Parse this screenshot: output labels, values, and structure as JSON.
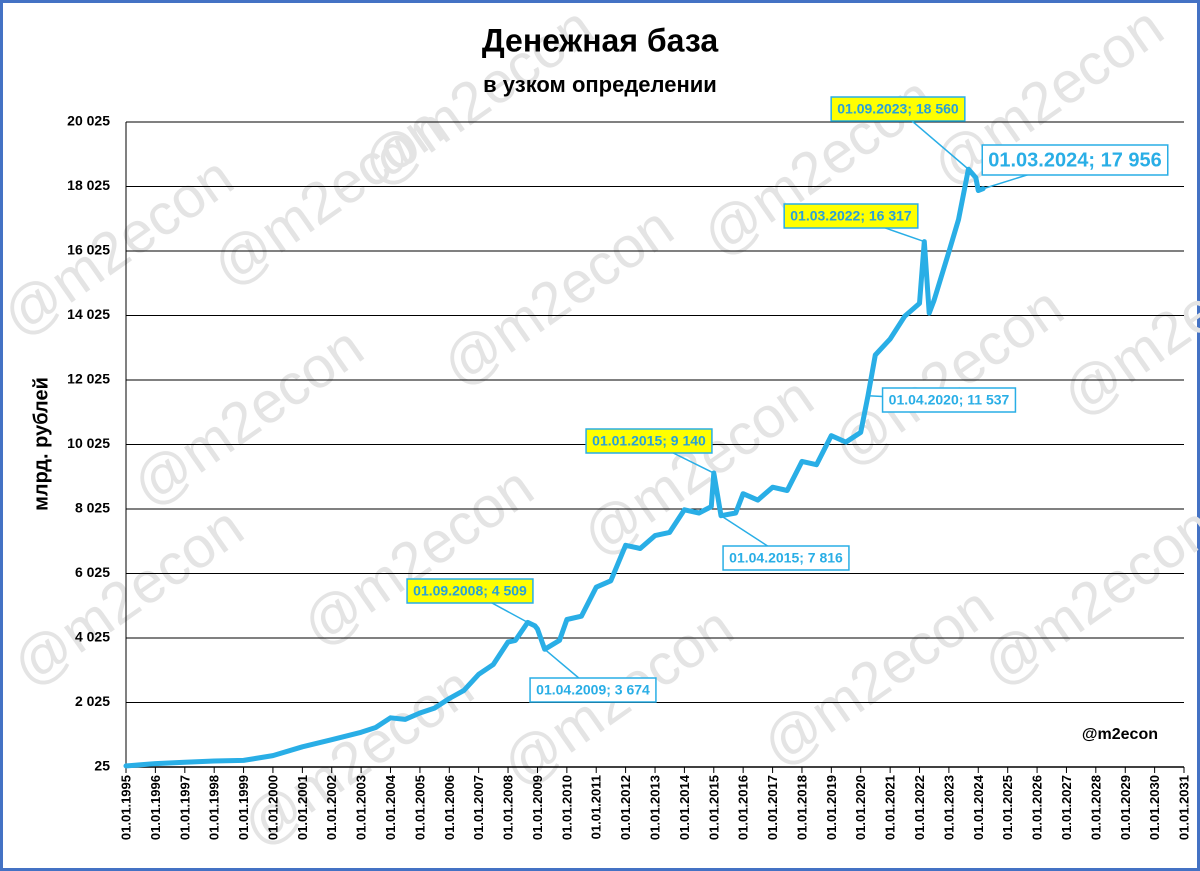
{
  "chart_data": {
    "type": "line",
    "title": "Денежная база",
    "subtitle": "в узком определении",
    "y_label": "млрд. рублей",
    "watermark": "@m2econ",
    "signature": "@m2econ",
    "grid": true,
    "ylim": [
      25,
      20025
    ],
    "yticks": [
      {
        "value": 25,
        "label": "25"
      },
      {
        "value": 2025,
        "label": "2 025"
      },
      {
        "value": 4025,
        "label": "4 025"
      },
      {
        "value": 6025,
        "label": "6 025"
      },
      {
        "value": 8025,
        "label": "8 025"
      },
      {
        "value": 10025,
        "label": "10 025"
      },
      {
        "value": 12025,
        "label": "12 025"
      },
      {
        "value": 14025,
        "label": "14 025"
      },
      {
        "value": 16025,
        "label": "16 025"
      },
      {
        "value": 18025,
        "label": "18 025"
      },
      {
        "value": 20025,
        "label": "20 025"
      }
    ],
    "xlim": [
      "1995-01-01",
      "2031-01-01"
    ],
    "xticks": [
      {
        "value": "1995-01-01",
        "label": "01.01.1995"
      },
      {
        "value": "1996-01-01",
        "label": "01.01.1996"
      },
      {
        "value": "1997-01-01",
        "label": "01.01.1997"
      },
      {
        "value": "1998-01-01",
        "label": "01.01.1998"
      },
      {
        "value": "1999-01-01",
        "label": "01.01.1999"
      },
      {
        "value": "2000-01-01",
        "label": "01.01.2000"
      },
      {
        "value": "2001-01-01",
        "label": "01.01.2001"
      },
      {
        "value": "2002-01-01",
        "label": "01.01.2002"
      },
      {
        "value": "2003-01-01",
        "label": "01.01.2003"
      },
      {
        "value": "2004-01-01",
        "label": "01.01.2004"
      },
      {
        "value": "2005-01-01",
        "label": "01.01.2005"
      },
      {
        "value": "2006-01-01",
        "label": "01.01.2006"
      },
      {
        "value": "2007-01-01",
        "label": "01.01.2007"
      },
      {
        "value": "2008-01-01",
        "label": "01.01.2008"
      },
      {
        "value": "2009-01-01",
        "label": "01.01.2009"
      },
      {
        "value": "2010-01-01",
        "label": "01.01.2010"
      },
      {
        "value": "2011-01-01",
        "label": "01.01.2011"
      },
      {
        "value": "2012-01-01",
        "label": "01.01.2012"
      },
      {
        "value": "2013-01-01",
        "label": "01.01.2013"
      },
      {
        "value": "2014-01-01",
        "label": "01.01.2014"
      },
      {
        "value": "2015-01-01",
        "label": "01.01.2015"
      },
      {
        "value": "2016-01-01",
        "label": "01.01.2016"
      },
      {
        "value": "2017-01-01",
        "label": "01.01.2017"
      },
      {
        "value": "2018-01-01",
        "label": "01.01.2018"
      },
      {
        "value": "2019-01-01",
        "label": "01.01.2019"
      },
      {
        "value": "2020-01-01",
        "label": "01.01.2020"
      },
      {
        "value": "2021-01-01",
        "label": "01.01.2021"
      },
      {
        "value": "2022-01-01",
        "label": "01.01.2022"
      },
      {
        "value": "2023-01-01",
        "label": "01.01.2023"
      },
      {
        "value": "2024-01-01",
        "label": "01.01.2024"
      },
      {
        "value": "2025-01-01",
        "label": "01.01.2025"
      },
      {
        "value": "2026-01-01",
        "label": "01.01.2026"
      },
      {
        "value": "2027-01-01",
        "label": "01.01.2027"
      },
      {
        "value": "2028-01-01",
        "label": "01.01.2028"
      },
      {
        "value": "2029-01-01",
        "label": "01.01.2029"
      },
      {
        "value": "2030-01-01",
        "label": "01.01.2030"
      },
      {
        "value": "2031-01-01",
        "label": "01.01.2031"
      }
    ],
    "x": [
      "1995-01-01",
      "1996-01-01",
      "1997-01-01",
      "1998-01-01",
      "1999-01-01",
      "2000-01-01",
      "2001-01-01",
      "2002-01-01",
      "2003-01-01",
      "2003-07-01",
      "2004-01-01",
      "2004-07-01",
      "2005-01-01",
      "2005-07-01",
      "2006-01-01",
      "2006-07-01",
      "2007-01-01",
      "2007-07-01",
      "2008-01-01",
      "2008-04-01",
      "2008-09-01",
      "2008-12-01",
      "2009-01-01",
      "2009-04-01",
      "2009-10-01",
      "2010-01-01",
      "2010-07-01",
      "2011-01-01",
      "2011-07-01",
      "2012-01-01",
      "2012-07-01",
      "2013-01-01",
      "2013-07-01",
      "2014-01-01",
      "2014-07-01",
      "2014-12-01",
      "2015-01-01",
      "2015-04-01",
      "2015-10-01",
      "2016-01-01",
      "2016-07-01",
      "2017-01-01",
      "2017-07-01",
      "2018-01-01",
      "2018-07-01",
      "2019-01-01",
      "2019-07-01",
      "2020-01-01",
      "2020-04-01",
      "2020-07-01",
      "2021-01-01",
      "2021-07-01",
      "2022-01-01",
      "2022-03-01",
      "2022-05-01",
      "2022-07-01",
      "2023-01-01",
      "2023-05-01",
      "2023-09-01",
      "2023-12-01",
      "2024-01-01",
      "2024-03-01"
    ],
    "series": [
      {
        "name": "Денежная база",
        "color": "#29aee6",
        "values": [
          60,
          130,
          170,
          210,
          230,
          380,
          650,
          870,
          1100,
          1250,
          1550,
          1500,
          1700,
          1850,
          2150,
          2400,
          2900,
          3200,
          3900,
          3950,
          4509,
          4400,
          4300,
          3674,
          3950,
          4600,
          4700,
          5600,
          5800,
          6900,
          6800,
          7200,
          7300,
          8000,
          7900,
          8100,
          9140,
          7816,
          7900,
          8500,
          8300,
          8700,
          8600,
          9500,
          9400,
          10300,
          10100,
          10400,
          11537,
          12800,
          13300,
          14000,
          14400,
          16317,
          14100,
          14500,
          16000,
          17000,
          18560,
          18300,
          17900,
          17956
        ]
      }
    ],
    "annotations": [
      {
        "x": "2008-09-01",
        "value": 4509,
        "label": "01.09.2008; 4 509",
        "color": "#ffff00"
      },
      {
        "x": "2009-04-01",
        "value": 3674,
        "label": "01.04.2009; 3 674",
        "color": "#ffffff"
      },
      {
        "x": "2015-01-01",
        "value": 9140,
        "label": "01.01.2015; 9 140",
        "color": "#ffff00"
      },
      {
        "x": "2015-04-01",
        "value": 7816,
        "label": "01.04.2015; 7 816",
        "color": "#ffffff"
      },
      {
        "x": "2020-04-01",
        "value": 11537,
        "label": "01.04.2020; 11 537",
        "color": "#ffffff"
      },
      {
        "x": "2022-03-01",
        "value": 16317,
        "label": "01.03.2022; 16 317",
        "color": "#ffff00"
      },
      {
        "x": "2023-09-01",
        "value": 18560,
        "label": "01.09.2023; 18 560",
        "color": "#ffff00"
      },
      {
        "x": "2024-03-01",
        "value": 17956,
        "label": "01.03.2024; 17 956",
        "color": "#ffffff"
      }
    ]
  }
}
